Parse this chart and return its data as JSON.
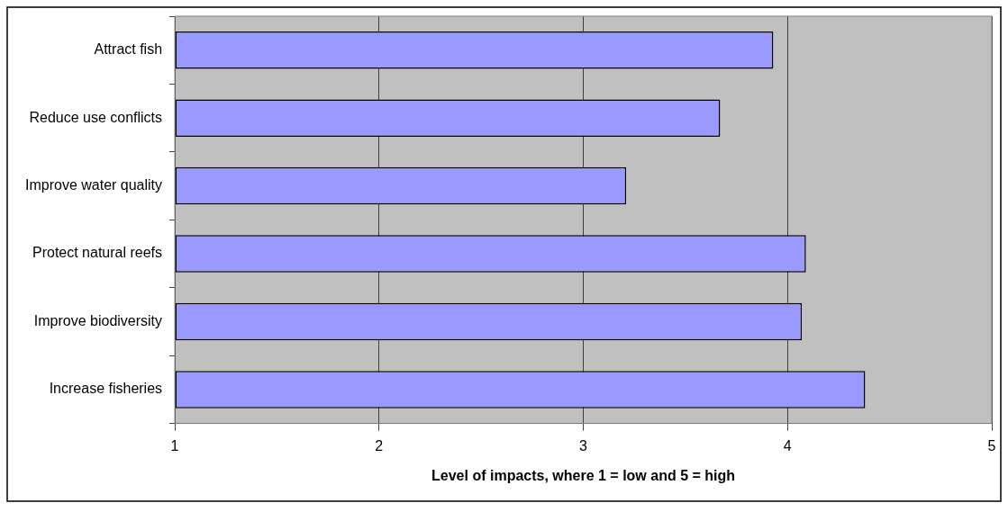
{
  "chart_data": {
    "type": "bar",
    "orientation": "horizontal",
    "xlabel": "Level of impacts, where 1 = low and 5 = high",
    "categories": [
      "Attract fish",
      "Reduce use conflicts",
      "Improve water quality",
      "Protect natural reefs",
      "Improve biodiversity",
      "Increase fisheries"
    ],
    "values": [
      3.93,
      3.67,
      3.21,
      4.09,
      4.07,
      4.38
    ],
    "color": "#9999ff",
    "xlim": [
      1,
      5
    ],
    "xticks": [
      1,
      2,
      3,
      4,
      5
    ],
    "grid": "x",
    "legend": false
  }
}
